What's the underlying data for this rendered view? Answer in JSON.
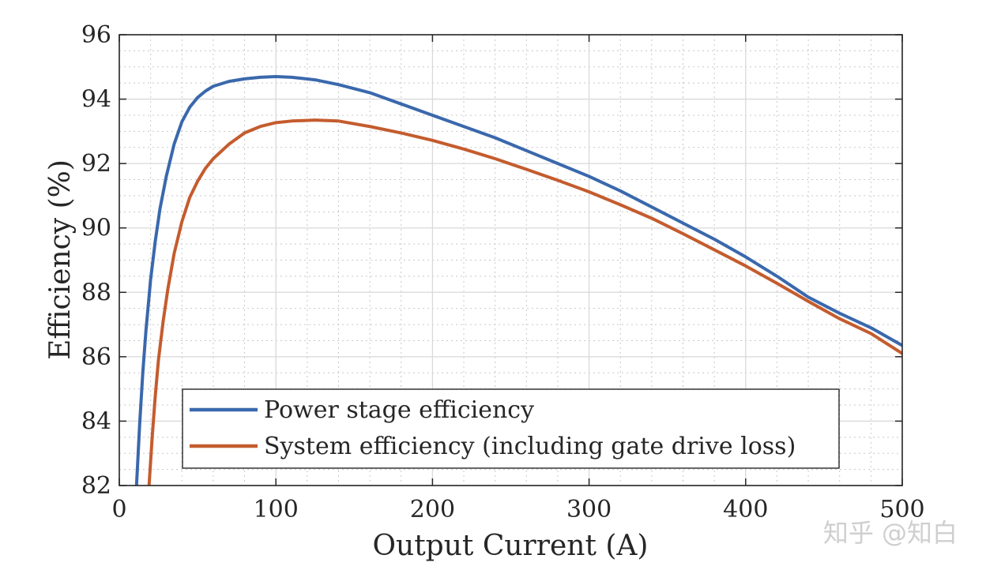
{
  "chart_data": {
    "type": "line",
    "title": "",
    "xlabel": "Output Current (A)",
    "ylabel": "Efficiency (%)",
    "xlim": [
      0,
      500
    ],
    "ylim": [
      82,
      96
    ],
    "xticks": [
      0,
      100,
      200,
      300,
      400,
      500
    ],
    "yticks": [
      82,
      84,
      86,
      88,
      90,
      92,
      94,
      96
    ],
    "xtick_labels": [
      "0",
      "100",
      "200",
      "300",
      "400",
      "500"
    ],
    "ytick_labels": [
      "82",
      "84",
      "86",
      "88",
      "90",
      "92",
      "94",
      "96"
    ],
    "grid": true,
    "minor_grid": true,
    "legend_position": "lower-right",
    "series": [
      {
        "name": "Power stage efficiency",
        "color": "#3a68ac",
        "x": [
          11,
          13,
          15,
          17,
          20,
          23,
          26,
          30,
          35,
          40,
          45,
          50,
          55,
          60,
          70,
          80,
          90,
          100,
          110,
          125,
          140,
          160,
          180,
          200,
          220,
          240,
          260,
          280,
          300,
          320,
          340,
          360,
          380,
          400,
          420,
          440,
          460,
          480,
          500
        ],
        "y": [
          82.0,
          83.9,
          85.5,
          86.8,
          88.4,
          89.6,
          90.6,
          91.6,
          92.6,
          93.3,
          93.75,
          94.05,
          94.25,
          94.4,
          94.55,
          94.63,
          94.68,
          94.7,
          94.68,
          94.6,
          94.45,
          94.2,
          93.85,
          93.5,
          93.15,
          92.8,
          92.4,
          92.0,
          91.6,
          91.15,
          90.65,
          90.15,
          89.65,
          89.1,
          88.5,
          87.85,
          87.35,
          86.9,
          86.35
        ]
      },
      {
        "name": "System efficiency (including gate drive loss)",
        "color": "#c45c2e",
        "x": [
          19,
          21,
          23,
          25,
          28,
          31,
          35,
          40,
          45,
          50,
          55,
          60,
          70,
          80,
          90,
          100,
          110,
          125,
          140,
          160,
          180,
          200,
          220,
          240,
          260,
          280,
          300,
          320,
          340,
          360,
          380,
          400,
          420,
          440,
          460,
          480,
          500
        ],
        "y": [
          82.0,
          83.5,
          84.8,
          85.9,
          87.1,
          88.1,
          89.2,
          90.2,
          90.95,
          91.45,
          91.85,
          92.15,
          92.6,
          92.95,
          93.15,
          93.27,
          93.32,
          93.35,
          93.32,
          93.15,
          92.95,
          92.72,
          92.45,
          92.15,
          91.82,
          91.48,
          91.12,
          90.72,
          90.3,
          89.82,
          89.32,
          88.82,
          88.28,
          87.72,
          87.18,
          86.72,
          86.1
        ]
      }
    ]
  },
  "watermark": {
    "text": "知乎 @知白"
  }
}
